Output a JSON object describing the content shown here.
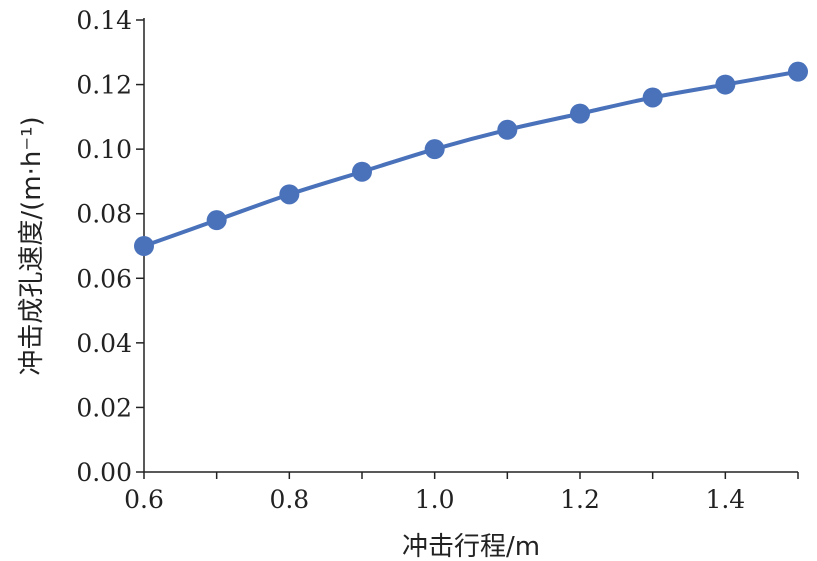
{
  "chart_data": {
    "type": "line",
    "title": "",
    "xlabel": "冲击行程/m",
    "ylabel": "冲击成孔速度/(m·h⁻¹)",
    "x": [
      0.6,
      0.7,
      0.8,
      0.9,
      1.0,
      1.1,
      1.2,
      1.3,
      1.4,
      1.5
    ],
    "series": [
      {
        "values": [
          0.07,
          0.078,
          0.086,
          0.093,
          0.1,
          0.106,
          0.111,
          0.116,
          0.12,
          0.124
        ],
        "color": "#4a72bb",
        "marker": "circle"
      }
    ],
    "xlim": [
      0.6,
      1.5
    ],
    "ylim": [
      0.0,
      0.14
    ],
    "xticks": [
      "0.6",
      "0.8",
      "1.0",
      "1.2",
      "1.4"
    ],
    "yticks": [
      "0.00",
      "0.02",
      "0.04",
      "0.06",
      "0.08",
      "0.10",
      "0.12",
      "0.14"
    ],
    "grid": false,
    "legend": "none"
  }
}
